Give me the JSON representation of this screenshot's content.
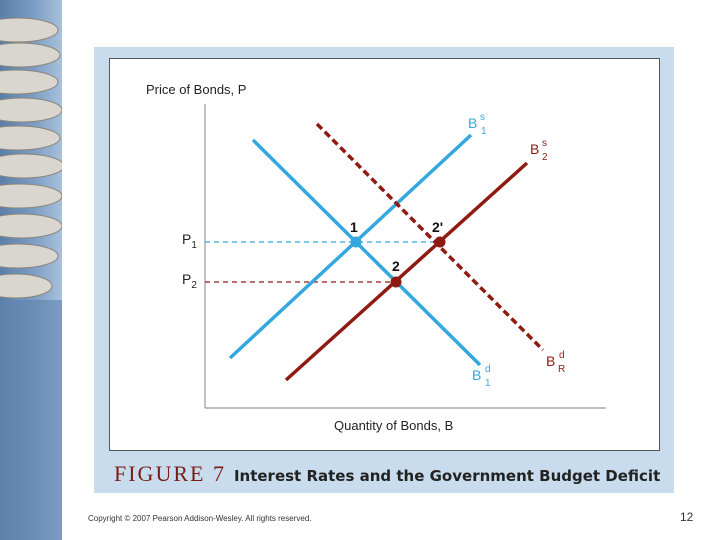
{
  "diagram": {
    "y_axis_label": "Price of Bonds, P",
    "x_axis_label": "Quantity of Bonds, B",
    "supply_1_label": {
      "base": "B",
      "sup": "s",
      "sub": "1"
    },
    "supply_2_label": {
      "base": "B",
      "sup": "s",
      "sub": "2"
    },
    "demand_1_label": {
      "base": "B",
      "sup": "d",
      "sub": "1"
    },
    "demand_r_label": {
      "base": "B",
      "sup": "d",
      "sub": "R"
    },
    "price_1_label": {
      "base": "P",
      "sub": "1"
    },
    "price_2_label": {
      "base": "P",
      "sub": "2"
    },
    "point_1_label": "1",
    "point_2_label": "2",
    "point_2prime_label": "2'",
    "colors": {
      "blue": "#34a8de",
      "red": "#8e1a12",
      "axis": "#999999"
    }
  },
  "caption": {
    "figure": "FIGURE 7",
    "title": "Interest Rates and the Government Budget Deficit"
  },
  "footer": {
    "copyright": "Copyright © 2007 Pearson Addison-Wesley. All rights reserved.",
    "page_number": "12"
  }
}
